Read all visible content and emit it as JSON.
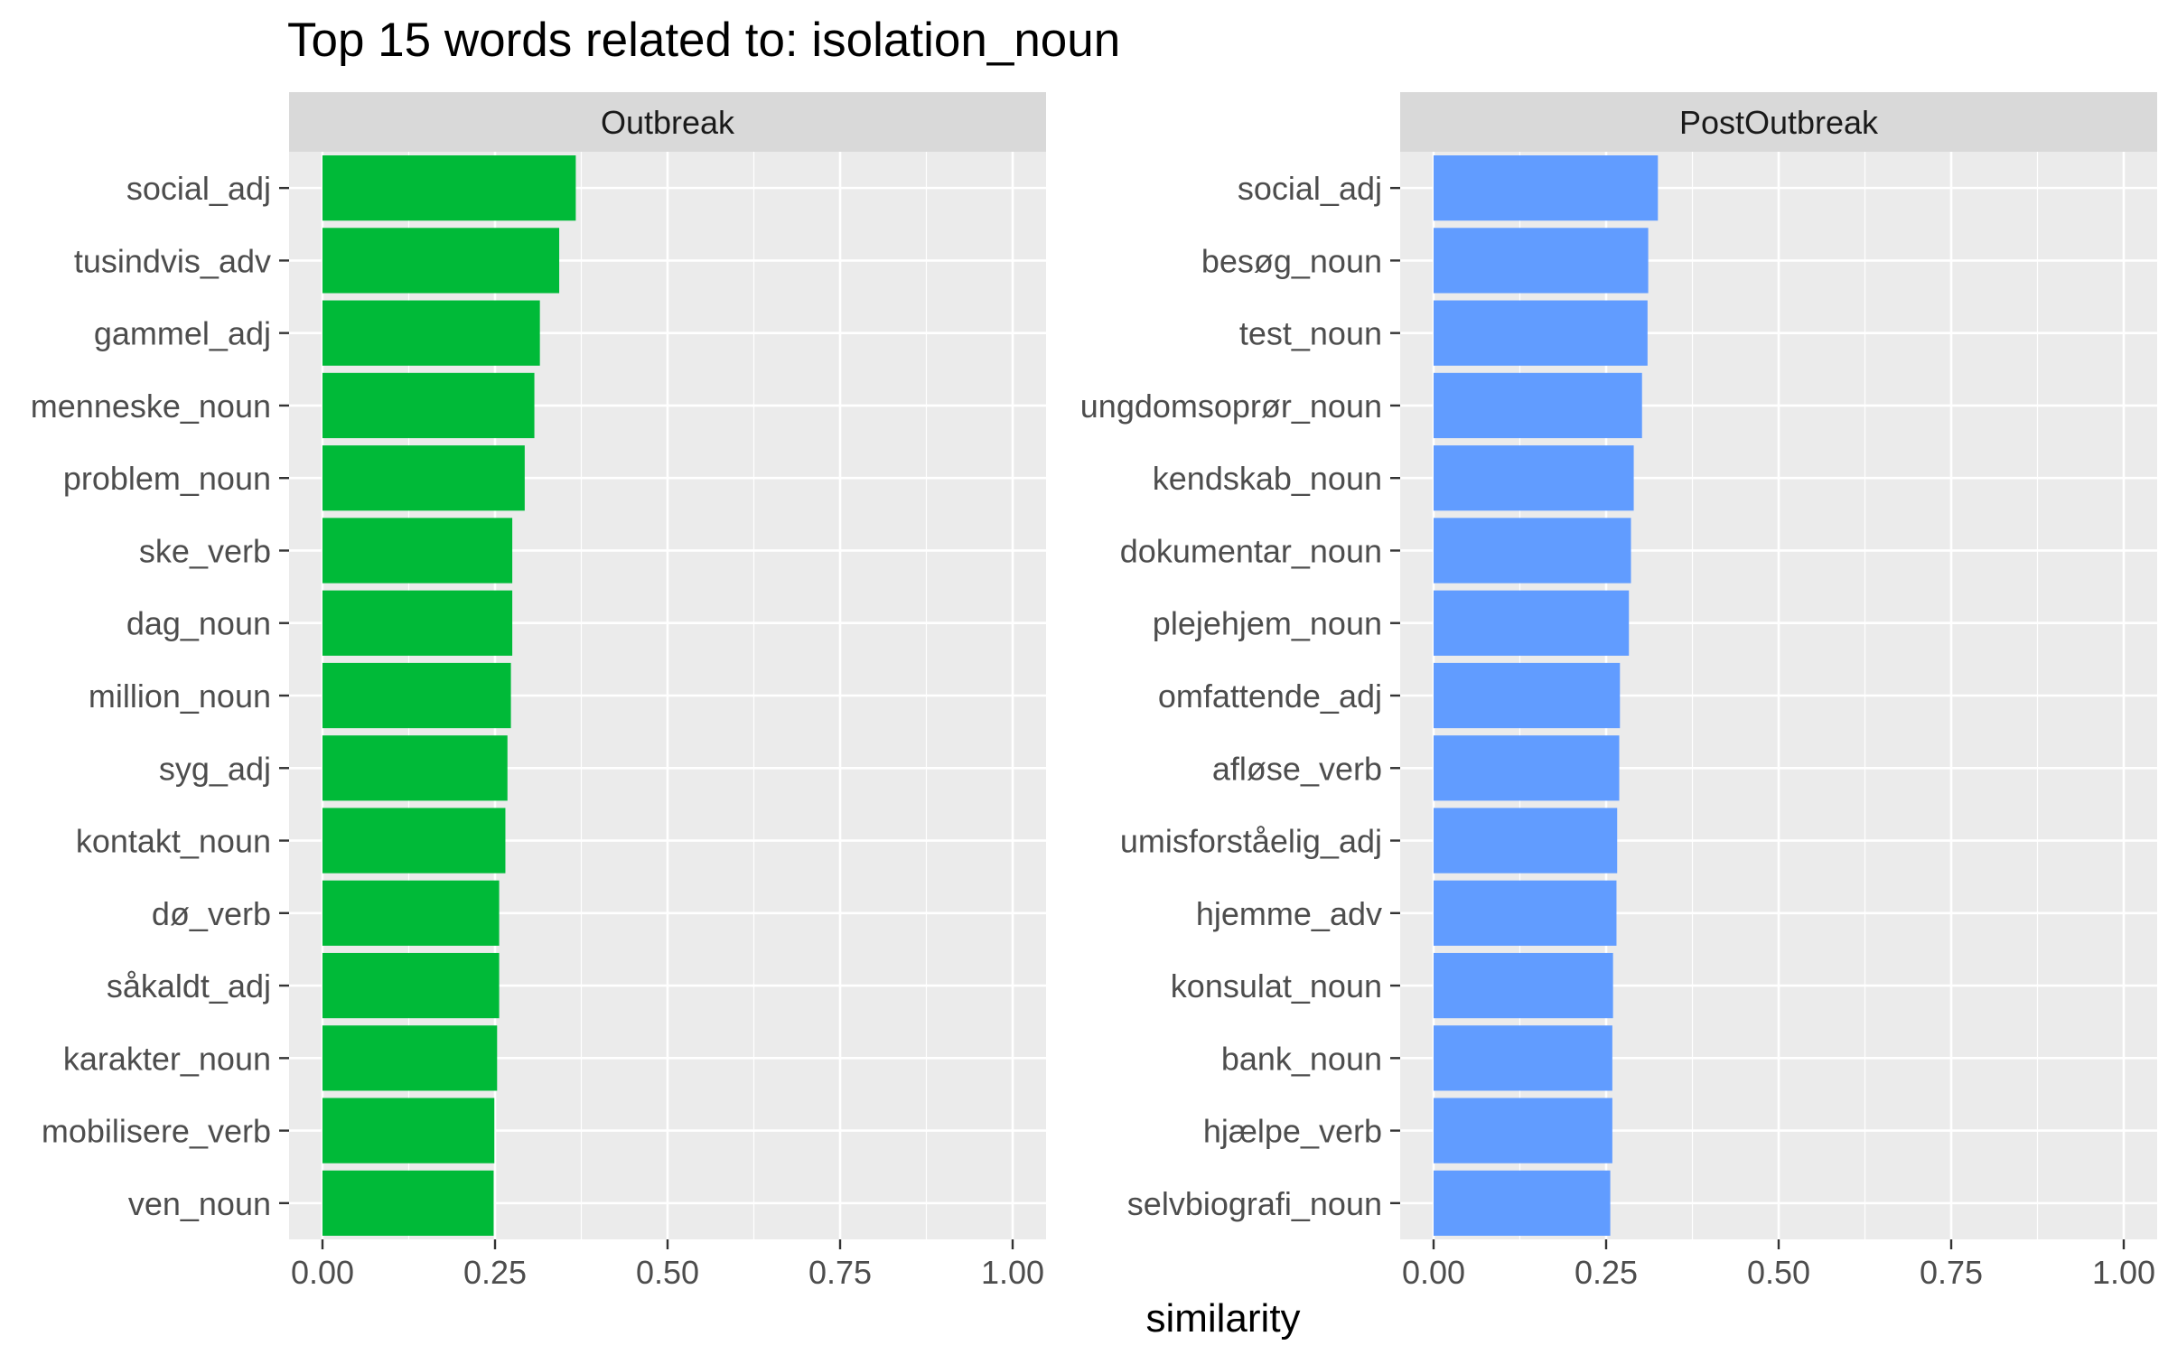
{
  "chart_data": {
    "type": "bar",
    "orientation": "horizontal",
    "title": "Top 15 words related to: isolation_noun",
    "xlabel": "similarity",
    "ylabel": "",
    "xlim": [
      0,
      1
    ],
    "x_ticks": [
      "0.00",
      "0.25",
      "0.50",
      "0.75",
      "1.00"
    ],
    "x_tick_values": [
      0,
      0.25,
      0.5,
      0.75,
      1.0
    ],
    "grid": true,
    "legend": "none",
    "panels": [
      {
        "name": "Outbreak",
        "color": "#00BA38",
        "categories": [
          "social_adj",
          "tusindvis_adv",
          "gammel_adj",
          "menneske_noun",
          "problem_noun",
          "ske_verb",
          "dag_noun",
          "million_noun",
          "syg_adj",
          "kontakt_noun",
          "dø_verb",
          "såkaldt_adj",
          "karakter_noun",
          "mobilisere_verb",
          "ven_noun"
        ],
        "values": [
          0.367,
          0.343,
          0.315,
          0.307,
          0.293,
          0.275,
          0.275,
          0.273,
          0.268,
          0.265,
          0.256,
          0.256,
          0.253,
          0.249,
          0.248
        ]
      },
      {
        "name": "PostOutbreak",
        "color": "#619CFF",
        "categories": [
          "social_adj",
          "besøg_noun",
          "test_noun",
          "ungdomsoprør_noun",
          "kendskab_noun",
          "dokumentar_noun",
          "plejehjem_noun",
          "omfattende_adj",
          "afløse_verb",
          "umisforståelig_adj",
          "hjemme_adv",
          "konsulat_noun",
          "bank_noun",
          "hjælpe_verb",
          "selvbiografi_noun"
        ],
        "values": [
          0.325,
          0.311,
          0.31,
          0.302,
          0.29,
          0.286,
          0.283,
          0.27,
          0.269,
          0.266,
          0.265,
          0.26,
          0.259,
          0.259,
          0.256
        ]
      }
    ]
  }
}
